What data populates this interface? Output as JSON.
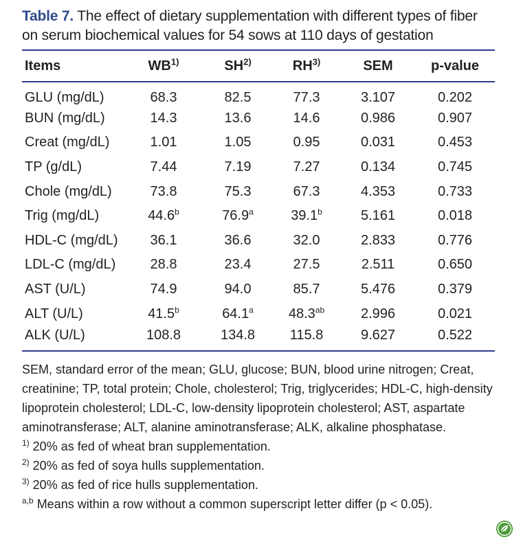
{
  "caption": {
    "label": "Table 7.",
    "text": " The effect of dietary supplementation with different types of fiber on serum biochemical values for 54 sows at 110 days of gestation"
  },
  "table": {
    "headers": {
      "items": "Items",
      "wb": "WB",
      "wb_sup": "1)",
      "sh": "SH",
      "sh_sup": "2)",
      "rh": "RH",
      "rh_sup": "3)",
      "sem": "SEM",
      "pvalue": "p-value"
    },
    "rows": [
      {
        "item": "GLU (mg/dL)",
        "wb": "68.3",
        "wb_sup": "",
        "sh": "82.5",
        "sh_sup": "",
        "rh": "77.3",
        "rh_sup": "",
        "sem": "3.107",
        "p": "0.202"
      },
      {
        "item": "BUN (mg/dL)",
        "wb": "14.3",
        "wb_sup": "",
        "sh": "13.6",
        "sh_sup": "",
        "rh": "14.6",
        "rh_sup": "",
        "sem": "0.986",
        "p": "0.907"
      },
      {
        "item": "Creat (mg/dL)",
        "wb": "1.01",
        "wb_sup": "",
        "sh": "1.05",
        "sh_sup": "",
        "rh": "0.95",
        "rh_sup": "",
        "sem": "0.031",
        "p": "0.453"
      },
      {
        "item": "TP (g/dL)",
        "wb": "7.44",
        "wb_sup": "",
        "sh": "7.19",
        "sh_sup": "",
        "rh": "7.27",
        "rh_sup": "",
        "sem": "0.134",
        "p": "0.745"
      },
      {
        "item": "Chole (mg/dL)",
        "wb": "73.8",
        "wb_sup": "",
        "sh": "75.3",
        "sh_sup": "",
        "rh": "67.3",
        "rh_sup": "",
        "sem": "4.353",
        "p": "0.733"
      },
      {
        "item": "Trig (mg/dL)",
        "wb": "44.6",
        "wb_sup": "b",
        "sh": "76.9",
        "sh_sup": "a",
        "rh": "39.1",
        "rh_sup": "b",
        "sem": "5.161",
        "p": "0.018"
      },
      {
        "item": "HDL-C (mg/dL)",
        "wb": "36.1",
        "wb_sup": "",
        "sh": "36.6",
        "sh_sup": "",
        "rh": "32.0",
        "rh_sup": "",
        "sem": "2.833",
        "p": "0.776"
      },
      {
        "item": "LDL-C (mg/dL)",
        "wb": "28.8",
        "wb_sup": "",
        "sh": "23.4",
        "sh_sup": "",
        "rh": "27.5",
        "rh_sup": "",
        "sem": "2.511",
        "p": "0.650"
      },
      {
        "item": "AST (U/L)",
        "wb": "74.9",
        "wb_sup": "",
        "sh": "94.0",
        "sh_sup": "",
        "rh": "85.7",
        "rh_sup": "",
        "sem": "5.476",
        "p": "0.379"
      },
      {
        "item": "ALT (U/L)",
        "wb": "41.5",
        "wb_sup": "b",
        "sh": "64.1",
        "sh_sup": "a",
        "rh": "48.3",
        "rh_sup": "ab",
        "sem": "2.996",
        "p": "0.021"
      },
      {
        "item": "ALK (U/L)",
        "wb": "108.8",
        "wb_sup": "",
        "sh": "134.8",
        "sh_sup": "",
        "rh": "115.8",
        "rh_sup": "",
        "sem": "9.627",
        "p": "0.522"
      }
    ]
  },
  "footnotes": {
    "abbreviations": "SEM, standard error of the mean; GLU, glucose; BUN, blood urine nitrogen; Creat, creatinine; TP, total protein; Chole, cholesterol; Trig, triglycerides; HDL-C, high-density lipoprotein cholesterol; LDL-C, low-density lipoprotein cholesterol; AST, aspartate aminotransferase; ALT, alanine aminotransferase; ALK, alkaline phosphatase.",
    "note1_mark": "1)",
    "note1_text": " 20% as fed of wheat bran supplementation.",
    "note2_mark": "2)",
    "note2_text": " 20% as fed of soya hulls supplementation.",
    "note3_mark": "3)",
    "note3_text": " 20% as fed of rice hulls supplementation.",
    "note4_mark": "a,b",
    "note4_text": " Means within a row without a common superscript letter differ (p < 0.05)."
  },
  "colors": {
    "caption_label": "#2e4a8b",
    "rule": "#2e3a8c",
    "badge": "#4a9a3a"
  },
  "icons": {
    "badge": "leaf-badge-icon"
  }
}
